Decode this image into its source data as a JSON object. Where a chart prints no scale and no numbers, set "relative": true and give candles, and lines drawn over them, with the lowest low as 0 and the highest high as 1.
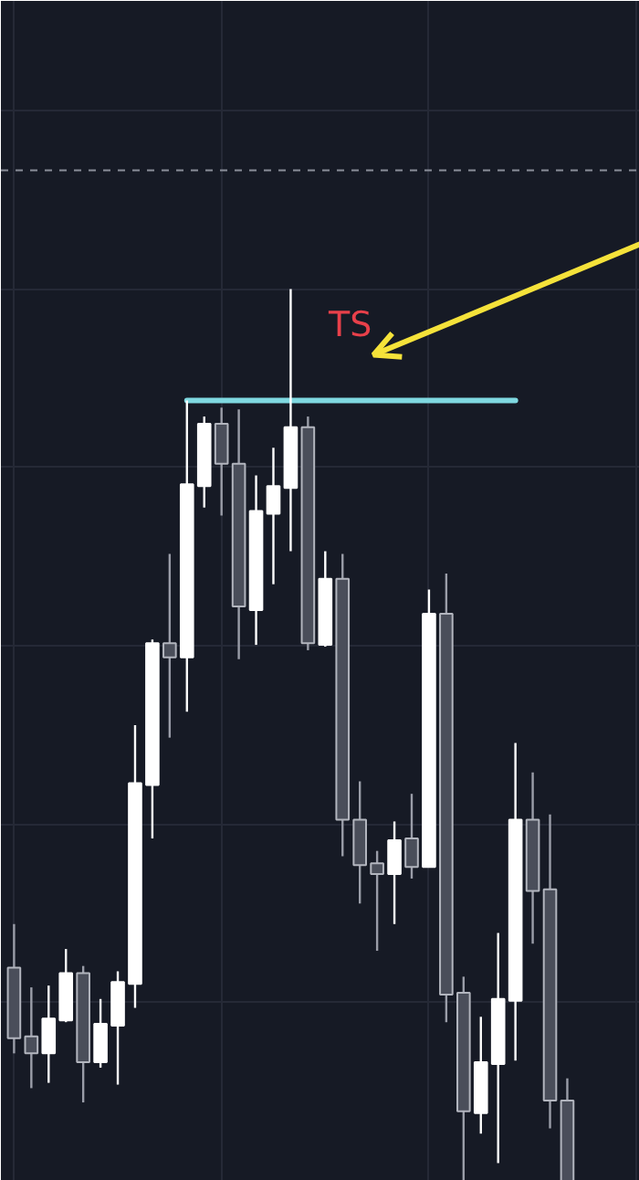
{
  "chart_data": {
    "type": "candlestick",
    "relative": true,
    "grid": true,
    "tick_labels": false,
    "categories": [
      null,
      null,
      null,
      null,
      null,
      null,
      null,
      null,
      null,
      null,
      null,
      null,
      null,
      null,
      null,
      null,
      null,
      null,
      null,
      null,
      null,
      null,
      null,
      null,
      null,
      null,
      null,
      null,
      null,
      null,
      null,
      null,
      null
    ],
    "ohlc": [
      [
        0.239,
        0.288,
        0.143,
        0.16
      ],
      [
        0.162,
        0.217,
        0.104,
        0.143
      ],
      [
        0.143,
        0.219,
        0.11,
        0.182
      ],
      [
        0.18,
        0.26,
        0.178,
        0.233
      ],
      [
        0.233,
        0.241,
        0.088,
        0.133
      ],
      [
        0.133,
        0.204,
        0.127,
        0.176
      ],
      [
        0.174,
        0.235,
        0.108,
        0.223
      ],
      [
        0.221,
        0.511,
        0.194,
        0.446
      ],
      [
        0.444,
        0.607,
        0.384,
        0.603
      ],
      [
        0.603,
        0.703,
        0.497,
        0.587
      ],
      [
        0.587,
        0.875,
        0.526,
        0.781
      ],
      [
        0.779,
        0.857,
        0.755,
        0.849
      ],
      [
        0.849,
        0.867,
        0.746,
        0.804
      ],
      [
        0.804,
        0.865,
        0.585,
        0.644
      ],
      [
        0.64,
        0.791,
        0.601,
        0.751
      ],
      [
        0.748,
        0.822,
        0.669,
        0.779
      ],
      [
        0.777,
        1.0,
        0.706,
        0.845
      ],
      [
        0.845,
        0.857,
        0.595,
        0.603
      ],
      [
        0.601,
        0.706,
        0.599,
        0.675
      ],
      [
        0.675,
        0.703,
        0.364,
        0.405
      ],
      [
        0.405,
        0.448,
        0.311,
        0.354
      ],
      [
        0.356,
        0.37,
        0.258,
        0.344
      ],
      [
        0.344,
        0.403,
        0.288,
        0.382
      ],
      [
        0.384,
        0.434,
        0.339,
        0.352
      ],
      [
        0.352,
        0.663,
        0.352,
        0.636
      ],
      [
        0.636,
        0.681,
        0.178,
        0.209
      ],
      [
        0.211,
        0.229,
        0.0,
        0.078
      ],
      [
        0.076,
        0.184,
        0.053,
        0.133
      ],
      [
        0.131,
        0.278,
        0.02,
        0.204
      ],
      [
        0.202,
        0.491,
        0.135,
        0.405
      ],
      [
        0.405,
        0.458,
        0.266,
        0.325
      ],
      [
        0.327,
        0.411,
        0.059,
        0.09
      ],
      [
        0.09,
        0.115,
        0.0,
        0.0
      ]
    ],
    "colors": [
      "#4a4e5a",
      "#4a4e5a",
      "#ffffff",
      "#ffffff",
      "#4a4e5a",
      "#ffffff",
      "#ffffff",
      "#ffffff",
      "#ffffff",
      "#4a4e5a",
      "#ffffff",
      "#ffffff",
      "#4a4e5a",
      "#4a4e5a",
      "#ffffff",
      "#ffffff",
      "#ffffff",
      "#4a4e5a",
      "#ffffff",
      "#4a4e5a",
      "#4a4e5a",
      "#4a4e5a",
      "#ffffff",
      "#4a4e5a",
      "#ffffff",
      "#4a4e5a",
      "#4a4e5a",
      "#ffffff",
      "#ffffff",
      "#ffffff",
      "#4a4e5a",
      "#4a4e5a",
      "#4a4e5a"
    ],
    "series": [
      {
        "type": "line",
        "values": [
          null,
          null,
          null,
          null,
          null,
          null,
          null,
          null,
          null,
          null,
          0.875,
          0.875,
          0.875,
          0.875,
          0.875,
          0.875,
          0.875,
          0.875,
          0.875,
          0.875,
          0.875,
          0.875,
          0.875,
          0.875,
          0.875,
          0.875,
          0.875,
          0.875,
          0.875,
          0.875,
          null,
          null,
          null
        ],
        "color": "#7fd8e0"
      }
    ],
    "ref_lines": [
      {
        "axis": "y",
        "value": 1.133,
        "color": "#8a8e99",
        "line_style": "dashed"
      }
    ],
    "annotations": [
      "TS"
    ]
  }
}
